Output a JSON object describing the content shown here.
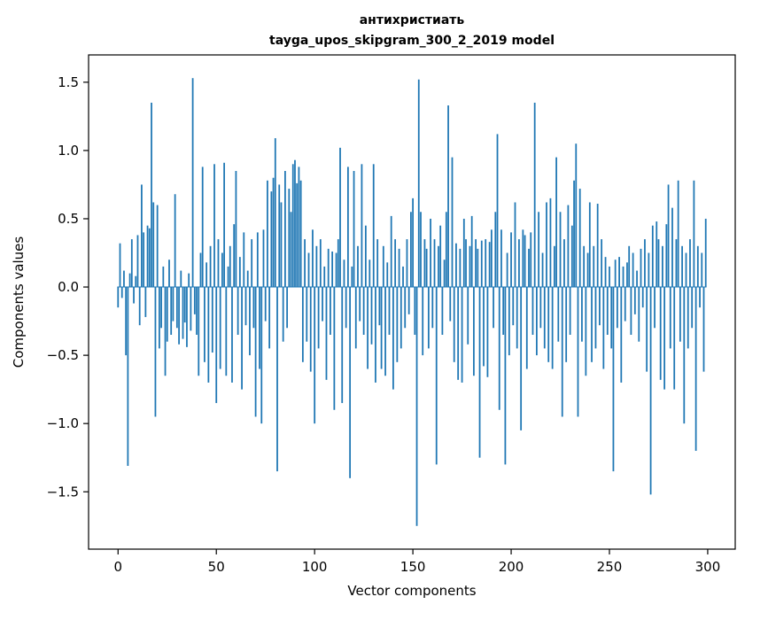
{
  "figure": {
    "title_line1": "антихристиать",
    "title_line2": "tayga_upos_skipgram_300_2_2019 model",
    "xlabel": "Vector components",
    "ylabel": "Components values"
  },
  "chart_data": {
    "type": "bar",
    "title": "антихристиать\ntayga_upos_skipgram_300_2_2019 model",
    "xlabel": "Vector components",
    "ylabel": "Components values",
    "legend": null,
    "grid": false,
    "bar_color": "#1f77b4",
    "x_start": 0,
    "x_step": 1,
    "xlim": [
      -15,
      314
    ],
    "ylim": [
      -1.92,
      1.7
    ],
    "x_ticks": [
      0,
      50,
      100,
      150,
      200,
      250,
      300
    ],
    "y_ticks": [
      1.5,
      1.0,
      0.5,
      0.0,
      -0.5,
      -1.0,
      -1.5
    ],
    "values": [
      -0.15,
      0.32,
      -0.08,
      0.12,
      -0.5,
      -1.31,
      0.1,
      0.35,
      -0.12,
      0.08,
      0.38,
      -0.28,
      0.75,
      0.4,
      -0.22,
      0.45,
      0.43,
      1.35,
      0.62,
      -0.95,
      0.6,
      -0.45,
      -0.3,
      0.15,
      -0.65,
      -0.4,
      0.2,
      -0.35,
      -0.25,
      0.68,
      -0.3,
      -0.42,
      0.12,
      -0.38,
      -0.26,
      -0.44,
      0.1,
      -0.32,
      1.53,
      -0.2,
      -0.35,
      -0.65,
      0.25,
      0.88,
      -0.55,
      0.18,
      -0.7,
      0.3,
      -0.48,
      0.9,
      -0.85,
      0.35,
      -0.6,
      0.25,
      0.91,
      -0.65,
      0.15,
      0.3,
      -0.7,
      0.46,
      0.85,
      -0.35,
      0.22,
      -0.75,
      0.4,
      -0.28,
      0.12,
      -0.5,
      0.35,
      -0.3,
      -0.95,
      0.4,
      -0.6,
      -1.0,
      0.42,
      -0.25,
      0.78,
      -0.45,
      0.7,
      0.8,
      1.09,
      -1.35,
      0.75,
      0.62,
      -0.4,
      0.85,
      -0.3,
      0.72,
      0.55,
      0.9,
      0.93,
      0.76,
      0.88,
      0.78,
      -0.55,
      0.35,
      -0.4,
      0.25,
      -0.62,
      0.42,
      -1.0,
      0.3,
      -0.45,
      0.35,
      -0.25,
      0.15,
      -0.68,
      0.28,
      -0.35,
      0.26,
      -0.9,
      0.25,
      0.35,
      1.02,
      -0.85,
      0.2,
      -0.3,
      0.88,
      -1.4,
      0.15,
      0.85,
      -0.45,
      0.3,
      -0.25,
      0.9,
      -0.35,
      0.45,
      -0.6,
      0.2,
      -0.42,
      0.9,
      -0.7,
      0.35,
      -0.28,
      -0.6,
      0.3,
      -0.65,
      0.18,
      -0.35,
      0.52,
      -0.75,
      0.35,
      -0.55,
      0.28,
      -0.45,
      0.15,
      -0.3,
      0.35,
      -0.2,
      0.55,
      0.65,
      -0.35,
      -1.75,
      1.52,
      0.55,
      -0.5,
      0.35,
      0.28,
      -0.45,
      0.5,
      -0.3,
      0.35,
      -1.3,
      0.3,
      0.45,
      -0.35,
      0.2,
      0.55,
      1.33,
      -0.25,
      0.95,
      -0.55,
      0.32,
      -0.68,
      0.28,
      -0.7,
      0.5,
      0.35,
      -0.42,
      0.3,
      0.52,
      -0.65,
      0.35,
      0.28,
      -1.25,
      0.34,
      -0.58,
      0.35,
      -0.66,
      0.33,
      0.42,
      -0.3,
      0.55,
      1.12,
      -0.9,
      0.42,
      -0.35,
      -1.3,
      0.25,
      -0.5,
      0.4,
      -0.28,
      0.62,
      -0.45,
      0.35,
      -1.05,
      0.42,
      0.38,
      -0.6,
      0.28,
      0.4,
      -0.35,
      1.35,
      -0.5,
      0.55,
      -0.3,
      0.25,
      -0.45,
      0.62,
      -0.55,
      0.65,
      -0.6,
      0.3,
      0.95,
      -0.4,
      0.55,
      -0.95,
      0.35,
      -0.55,
      0.6,
      -0.35,
      0.45,
      0.78,
      1.05,
      -0.95,
      0.72,
      -0.4,
      0.3,
      -0.65,
      0.25,
      0.62,
      -0.55,
      0.3,
      -0.45,
      0.61,
      -0.28,
      0.35,
      -0.6,
      0.22,
      -0.35,
      0.15,
      -0.45,
      -1.35,
      0.2,
      -0.3,
      0.22,
      -0.7,
      0.15,
      -0.25,
      0.18,
      0.3,
      -0.35,
      0.25,
      -0.2,
      0.12,
      -0.4,
      0.28,
      -0.15,
      0.35,
      -0.62,
      0.25,
      -1.52,
      0.45,
      -0.3,
      0.48,
      0.35,
      -0.68,
      0.3,
      -0.75,
      0.46,
      0.75,
      -0.45,
      0.58,
      -0.75,
      0.35,
      0.78,
      -0.4,
      0.3,
      -1.0,
      0.25,
      -0.45,
      0.35,
      -0.3,
      0.78,
      -1.2,
      0.3,
      -0.15,
      0.25,
      -0.62,
      0.5
    ]
  }
}
